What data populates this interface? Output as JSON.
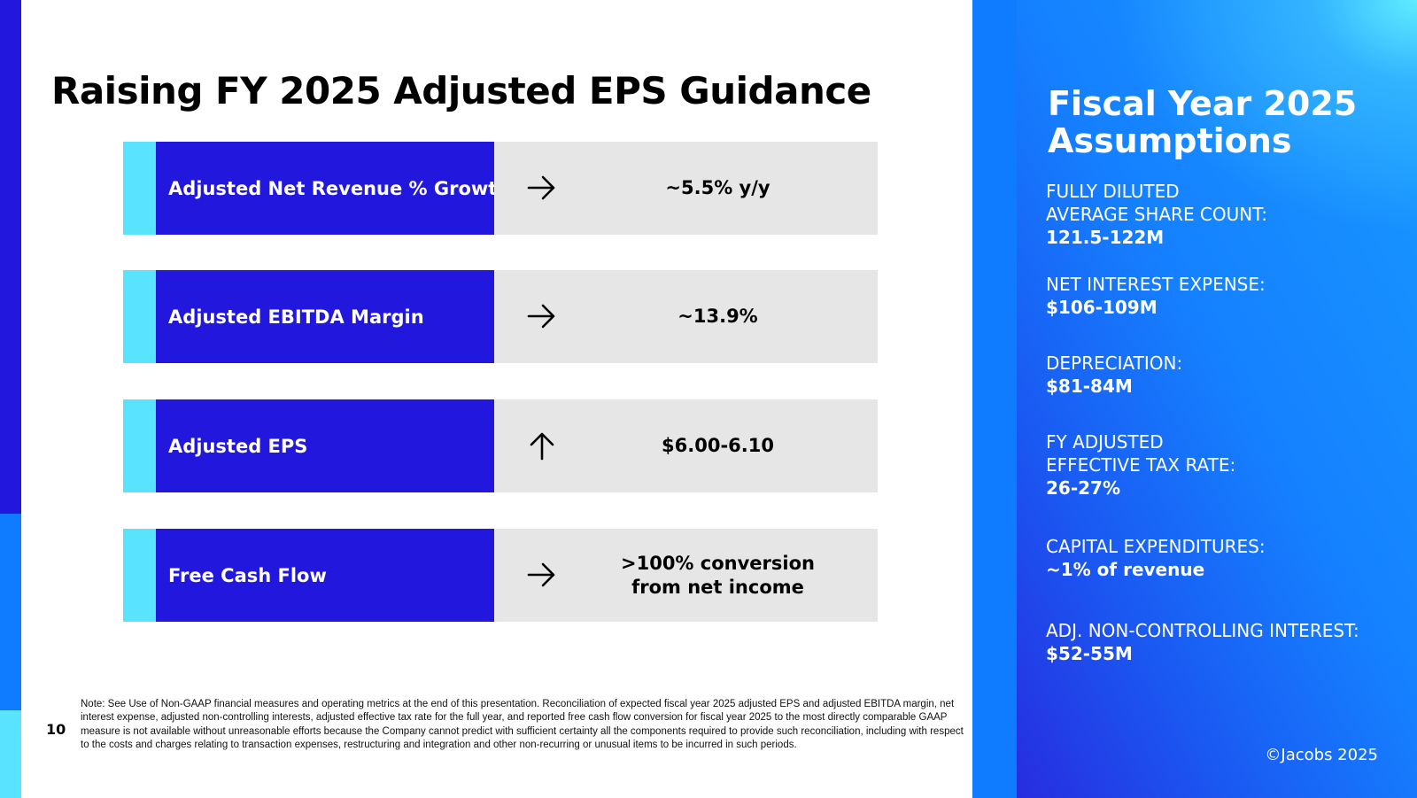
{
  "title": "Raising FY 2025 Adjusted EPS Guidance",
  "metrics": [
    {
      "label": "Adjusted Net Revenue % Growth",
      "arrow": "arrow-right-icon",
      "value": "~5.5% y/y"
    },
    {
      "label": "Adjusted EBITDA Margin",
      "arrow": "arrow-right-icon",
      "value": "~13.9%"
    },
    {
      "label": "Adjusted EPS",
      "arrow": "arrow-up-icon",
      "value": "$6.00-6.10"
    },
    {
      "label": "Free Cash Flow",
      "arrow": "arrow-right-icon",
      "value": ">100% conversion\nfrom net income"
    }
  ],
  "footnote": {
    "page_number": "10",
    "text": "Note: See Use of Non-GAAP financial measures and operating metrics at the end of this presentation. Reconciliation of expected fiscal year 2025 adjusted EPS and adjusted EBITDA margin, net interest expense, adjusted non-controlling interests, adjusted effective tax rate for the full year, and reported free cash flow conversion for fiscal year 2025 to the most directly comparable GAAP measure is not available without unreasonable efforts because the Company cannot predict with sufficient certainty all the components required to provide such reconciliation, including with respect to the costs and charges relating to transaction expenses, restructuring and integration and other non-recurring or unusual items to be incurred in such periods."
  },
  "assumptions": {
    "title": "Fiscal Year 2025\nAssumptions",
    "items": [
      {
        "label": "FULLY DILUTED\nAVERAGE SHARE COUNT:",
        "value": "121.5-122M"
      },
      {
        "label": "NET INTEREST EXPENSE:",
        "value": "$106-109M"
      },
      {
        "label": "DEPRECIATION:",
        "value": "$81-84M"
      },
      {
        "label": "FY ADJUSTED\nEFFECTIVE TAX RATE:",
        "value": "26-27%"
      },
      {
        "label": "CAPITAL EXPENDITURES:",
        "value": "~1% of revenue"
      },
      {
        "label": "ADJ. NON-CONTROLLING INTEREST:",
        "value": "$52-55M"
      }
    ]
  },
  "copyright": "©Jacobs 2025",
  "colors": {
    "dark_blue": "#2218dd",
    "cyan": "#59e3ff",
    "light_gray": "#e6e6e6",
    "bright_blue": "#0f7bff"
  }
}
